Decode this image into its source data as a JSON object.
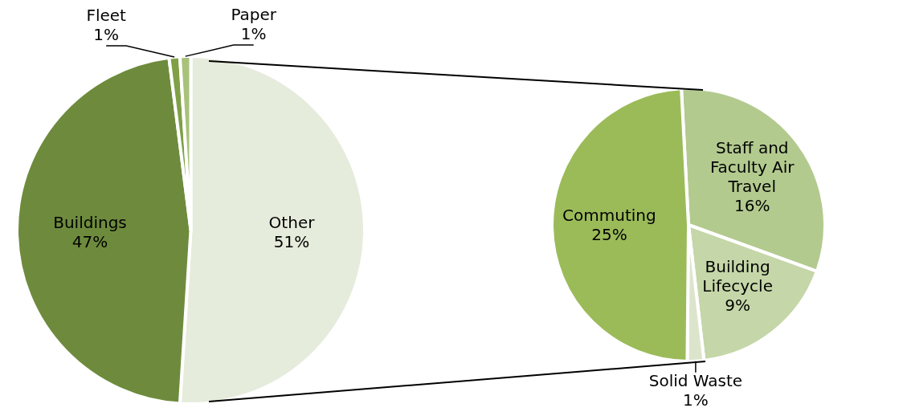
{
  "chart_data": [
    {
      "type": "pie",
      "categories": [
        "Other",
        "Buildings",
        "Fleet",
        "Paper"
      ],
      "values": [
        51,
        47,
        1,
        1
      ],
      "colors": [
        "#e6ecdc",
        "#6e8b3d",
        "#7fa046",
        "#a8c27a"
      ],
      "value_labels": [
        "51%",
        "47%",
        "1%",
        "1%"
      ],
      "legend": false
    },
    {
      "type": "pie",
      "categories": [
        "Staff and Faculty Air Travel",
        "Building Lifecycle",
        "Solid Waste",
        "Commuting"
      ],
      "values": [
        16,
        9,
        1,
        25
      ],
      "colors": [
        "#b3ca8f",
        "#c5d6a8",
        "#dce5cc",
        "#9bbb59"
      ],
      "value_labels": [
        "16%",
        "9%",
        "1%",
        "25%"
      ],
      "legend": false
    }
  ]
}
